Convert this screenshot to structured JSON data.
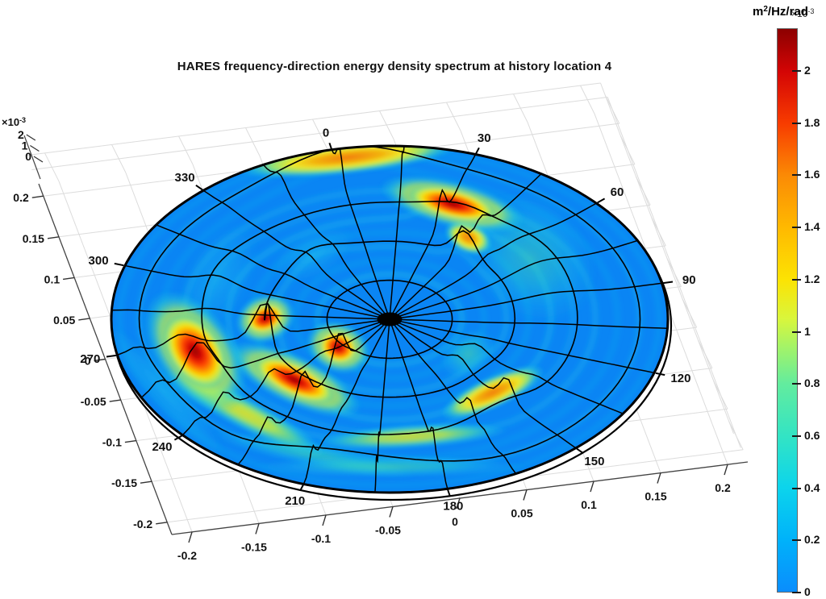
{
  "title": "HARES frequency-direction energy density spectrum at history location 4",
  "colorbar_unit": {
    "prefix": "m",
    "sup": "2",
    "suffix": "/Hz/rad"
  },
  "colorbar_exponent": {
    "prefix": "×10",
    "sup": "-3"
  },
  "z_exponent": {
    "prefix": "×10",
    "sup": "-3"
  },
  "chart_data": {
    "type": "heatmap",
    "projection": "3d-polar-surface",
    "title": "HARES frequency-direction energy density spectrum at history location 4",
    "angular_axis": {
      "quantity": "wave direction",
      "unit": "deg",
      "direction_labels": [
        "0",
        "30",
        "60",
        "90",
        "120",
        "150",
        "180",
        "210",
        "240",
        "270",
        "300",
        "330"
      ],
      "spoke_step_deg": 15
    },
    "radial_axis": {
      "quantity": "frequency",
      "unit": "Hz",
      "range": [
        0,
        0.2
      ],
      "ring_freqs_hz": [
        0.045,
        0.09,
        0.135,
        0.18
      ]
    },
    "value_axis": {
      "quantity": "energy density",
      "unit": "m2/Hz/rad",
      "scale": 0.001,
      "ticks": [
        0,
        1,
        2
      ]
    },
    "x_ticks": [
      "-0.2",
      "-0.15",
      "-0.1",
      "-0.05",
      "0",
      "0.05",
      "0.1",
      "0.15",
      "0.2"
    ],
    "y_ticks": [
      "0.2",
      "0.15",
      "0.1",
      "0.05",
      "0",
      "-0.05",
      "-0.1",
      "-0.15",
      "-0.2"
    ],
    "z_ticks": [
      "0",
      "1",
      "2"
    ],
    "background_level_e3": 0.25,
    "ripple_ring_fracs": [
      0.26,
      0.34,
      0.42,
      0.5,
      0.58,
      0.66,
      0.74,
      0.82,
      0.9,
      0.97
    ],
    "colorbar": {
      "ticks": [
        "0",
        "0.2",
        "0.4",
        "0.6",
        "0.8",
        "1",
        "1.2",
        "1.4",
        "1.6",
        "1.8",
        "2"
      ],
      "vmax_e3": 2.164,
      "colormap": [
        [
          0,
          "#0a8dfc"
        ],
        [
          0.2,
          "#00b2fa"
        ],
        [
          0.4,
          "#0cd4ec"
        ],
        [
          0.6,
          "#33e4c4"
        ],
        [
          0.8,
          "#63ec9e"
        ],
        [
          0.95,
          "#a8f464"
        ],
        [
          1.05,
          "#d9f63c"
        ],
        [
          1.2,
          "#fce303"
        ],
        [
          1.4,
          "#ffb900"
        ],
        [
          1.6,
          "#fb8b05"
        ],
        [
          1.8,
          "#f83c00"
        ],
        [
          2.0,
          "#d40505"
        ],
        [
          2.164,
          "#8c0000"
        ]
      ]
    },
    "peaks": [
      {
        "dir_deg": 2,
        "freq_hz": 0.173,
        "value_e3": 1.45,
        "dir_spread_deg": 13,
        "freq_spread_hz": 0.009,
        "tier": "orange"
      },
      {
        "dir_deg": 34,
        "freq_hz": 0.121,
        "value_e3": 1.8,
        "dir_spread_deg": 8,
        "freq_spread_hz": 0.008,
        "tier": "red"
      },
      {
        "dir_deg": 49,
        "freq_hz": 0.094,
        "value_e3": 1.6,
        "dir_spread_deg": 6,
        "freq_spread_hz": 0.007,
        "tier": "orange"
      },
      {
        "dir_deg": 258,
        "freq_hz": 0.153,
        "value_e3": 2.15,
        "dir_spread_deg": 8,
        "freq_spread_hz": 0.01,
        "tier": "red"
      },
      {
        "dir_deg": 268,
        "freq_hz": 0.092,
        "value_e3": 2.05,
        "dir_spread_deg": 5,
        "freq_spread_hz": 0.0075,
        "tier": "red"
      },
      {
        "dir_deg": 226,
        "freq_hz": 0.066,
        "value_e3": 2.0,
        "dir_spread_deg": 7,
        "freq_spread_hz": 0.008,
        "tier": "red"
      },
      {
        "dir_deg": 229,
        "freq_hz": 0.114,
        "value_e3": 1.9,
        "dir_spread_deg": 9,
        "freq_spread_hz": 0.0075,
        "tier": "red"
      },
      {
        "dir_deg": 232,
        "freq_hz": 0.161,
        "value_e3": 1.25,
        "dir_spread_deg": 13,
        "freq_spread_hz": 0.007,
        "tier": "yellow"
      },
      {
        "dir_deg": 156,
        "freq_hz": 0.126,
        "value_e3": 1.55,
        "dir_spread_deg": 10,
        "freq_spread_hz": 0.007,
        "tier": "orange"
      },
      {
        "dir_deg": 186,
        "freq_hz": 0.149,
        "value_e3": 1.15,
        "dir_spread_deg": 13,
        "freq_spread_hz": 0.0065,
        "tier": "yellow"
      },
      {
        "dir_deg": 143,
        "freq_hz": 0.075,
        "value_e3": 0.8,
        "dir_spread_deg": 10,
        "freq_spread_hz": 0.009,
        "tier": "green"
      },
      {
        "dir_deg": 333,
        "freq_hz": 0.088,
        "value_e3": 0.55,
        "dir_spread_deg": 12,
        "freq_spread_hz": 0.01,
        "tier": "cyan"
      },
      {
        "dir_deg": 70,
        "freq_hz": 0.12,
        "value_e3": 0.6,
        "dir_spread_deg": 16,
        "freq_spread_hz": 0.022,
        "tier": "green"
      },
      {
        "dir_deg": 192,
        "freq_hz": 0.182,
        "value_e3": 0.85,
        "dir_spread_deg": 15,
        "freq_spread_hz": 0.006,
        "tier": "green"
      },
      {
        "dir_deg": 253,
        "freq_hz": 0.186,
        "value_e3": 0.7,
        "dir_spread_deg": 14,
        "freq_spread_hz": 0.006,
        "tier": "cyan"
      },
      {
        "dir_deg": 300,
        "freq_hz": 0.13,
        "value_e3": 0.5,
        "dir_spread_deg": 14,
        "freq_spread_hz": 0.012,
        "tier": "cyan"
      },
      {
        "dir_deg": 210,
        "freq_hz": 0.178,
        "value_e3": 0.8,
        "dir_spread_deg": 12,
        "freq_spread_hz": 0.006,
        "tier": "green"
      }
    ]
  }
}
